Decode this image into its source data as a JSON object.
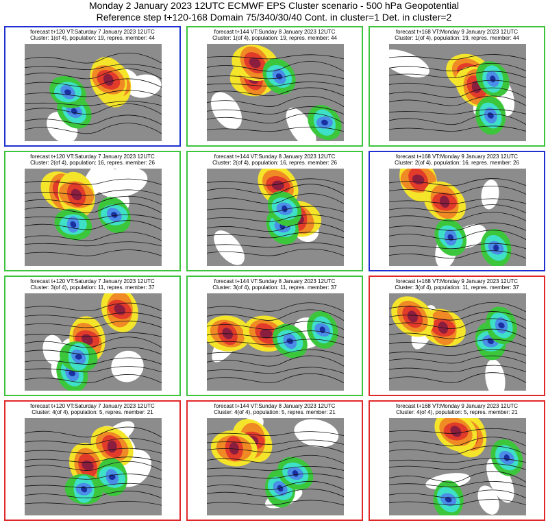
{
  "header": {
    "title": "Monday 2 January 2023 12UTC ECMWF EPS Cluster scenario - 500 hPa Geopotential",
    "subtitle": "Reference step t+120-168 Domain 75/340/30/40 Cont. in cluster=1 Det. in cluster=2"
  },
  "colors": {
    "blue_frame": "#1f2fd0",
    "green_frame": "#3cc43c",
    "red_frame": "#e02828",
    "land_grey": "#8c8c8c",
    "positive_dark": "#8b1e3f",
    "positive_red": "#e23b2a",
    "positive_orange": "#f08a24",
    "positive_yellow": "#f5e52a",
    "negative_green": "#3cc63c",
    "negative_cyan": "#3fe0c8",
    "negative_blue": "#4a8ee8",
    "negative_dark": "#1a2fa0"
  },
  "panels": [
    {
      "frame": "blue",
      "line1": "forecast t+120 VT:Saturday 7 January 2023 12UTC",
      "line2": "Cluster: 1(of 4), population: 19, repres. member: 44"
    },
    {
      "frame": "green",
      "line1": "forecast t+144 VT:Sunday 8 January 2023 12UTC",
      "line2": "Cluster: 1(of 4), population: 19, repres. member: 44"
    },
    {
      "frame": "green",
      "line1": "forecast t+168 VT:Monday 9 January 2023 12UTC",
      "line2": "Cluster: 1(of 4), population: 19, repres. member: 44"
    },
    {
      "frame": "green",
      "line1": "forecast t+120 VT:Saturday 7 January 2023 12UTC",
      "line2": "Cluster: 2(of 4), population: 16, repres. member: 26"
    },
    {
      "frame": "green",
      "line1": "forecast t+144 VT:Sunday 8 January 2023 12UTC",
      "line2": "Cluster: 2(of 4), population: 16, repres. member: 26"
    },
    {
      "frame": "blue",
      "line1": "forecast t+168 VT:Monday 9 January 2023 12UTC",
      "line2": "Cluster: 2(of 4), population: 16, repres. member: 26"
    },
    {
      "frame": "green",
      "line1": "forecast t+120 VT:Saturday 7 January 2023 12UTC",
      "line2": "Cluster: 3(of 4), population: 11, repres. member: 37"
    },
    {
      "frame": "green",
      "line1": "forecast t+144 VT:Sunday 8 January 2023 12UTC",
      "line2": "Cluster: 3(of 4), population: 11, repres. member: 37"
    },
    {
      "frame": "red",
      "line1": "forecast t+168 VT:Monday 9 January 2023 12UTC",
      "line2": "Cluster: 3(of 4), population: 11, repres. member: 37"
    },
    {
      "frame": "red",
      "line1": "forecast t+120 VT:Saturday 7 January 2023 12UTC",
      "line2": "Cluster: 4(of 4), population: 5, repres. member: 21"
    },
    {
      "frame": "red",
      "line1": "forecast t+144 VT:Sunday 8 January 2023 12UTC",
      "line2": "Cluster: 4(of 4), population: 5, repres. member: 21"
    },
    {
      "frame": "red",
      "line1": "forecast t+168 VT:Monday 9 January 2023 12UTC",
      "line2": "Cluster: 4(of 4), population: 5, repres. member: 21"
    }
  ]
}
